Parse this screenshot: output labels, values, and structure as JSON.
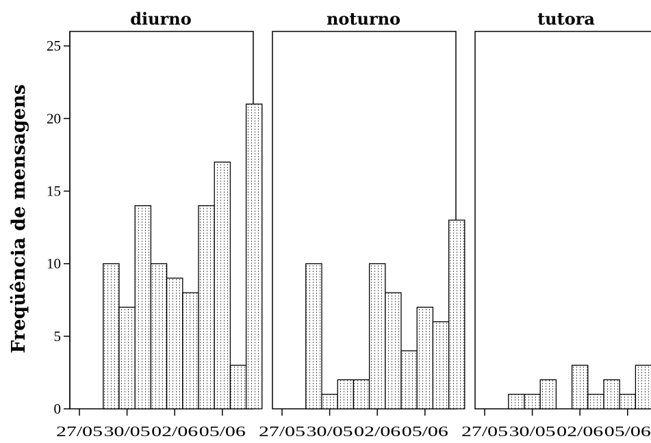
{
  "chart_data": {
    "type": "bar",
    "ylabel": "Freqüência de mensagens",
    "ylim": [
      0,
      26
    ],
    "yticks": [
      "0",
      "5",
      "10",
      "15",
      "20",
      "25"
    ],
    "xticks": [
      "27/05",
      "30/05",
      "02/06",
      "05/06"
    ],
    "bin_width_days": 1,
    "panels": [
      {
        "title": "diurno",
        "bars": [
          {
            "date": "28/05",
            "value": 10
          },
          {
            "date": "29/05",
            "value": 7
          },
          {
            "date": "30/05",
            "value": 14
          },
          {
            "date": "31/05",
            "value": 10
          },
          {
            "date": "01/06",
            "value": 9
          },
          {
            "date": "02/06",
            "value": 8
          },
          {
            "date": "03/06",
            "value": 14
          },
          {
            "date": "04/06",
            "value": 17
          },
          {
            "date": "05/06",
            "value": 3
          },
          {
            "date": "06/06",
            "value": 21
          }
        ]
      },
      {
        "title": "noturno",
        "bars": [
          {
            "date": "28/05",
            "value": 10
          },
          {
            "date": "29/05",
            "value": 1
          },
          {
            "date": "30/05",
            "value": 2
          },
          {
            "date": "31/05",
            "value": 2
          },
          {
            "date": "01/06",
            "value": 10
          },
          {
            "date": "02/06",
            "value": 8
          },
          {
            "date": "03/06",
            "value": 4
          },
          {
            "date": "04/06",
            "value": 7
          },
          {
            "date": "05/06",
            "value": 6
          },
          {
            "date": "06/06",
            "value": 13
          }
        ]
      },
      {
        "title": "tutora",
        "bars": [
          {
            "date": "28/05",
            "value": 1
          },
          {
            "date": "29/05",
            "value": 1
          },
          {
            "date": "30/05",
            "value": 2
          },
          {
            "date": "01/06",
            "value": 3
          },
          {
            "date": "02/06",
            "value": 1
          },
          {
            "date": "03/06",
            "value": 2
          },
          {
            "date": "04/06",
            "value": 1
          },
          {
            "date": "05/06",
            "value": 3
          }
        ]
      }
    ]
  }
}
